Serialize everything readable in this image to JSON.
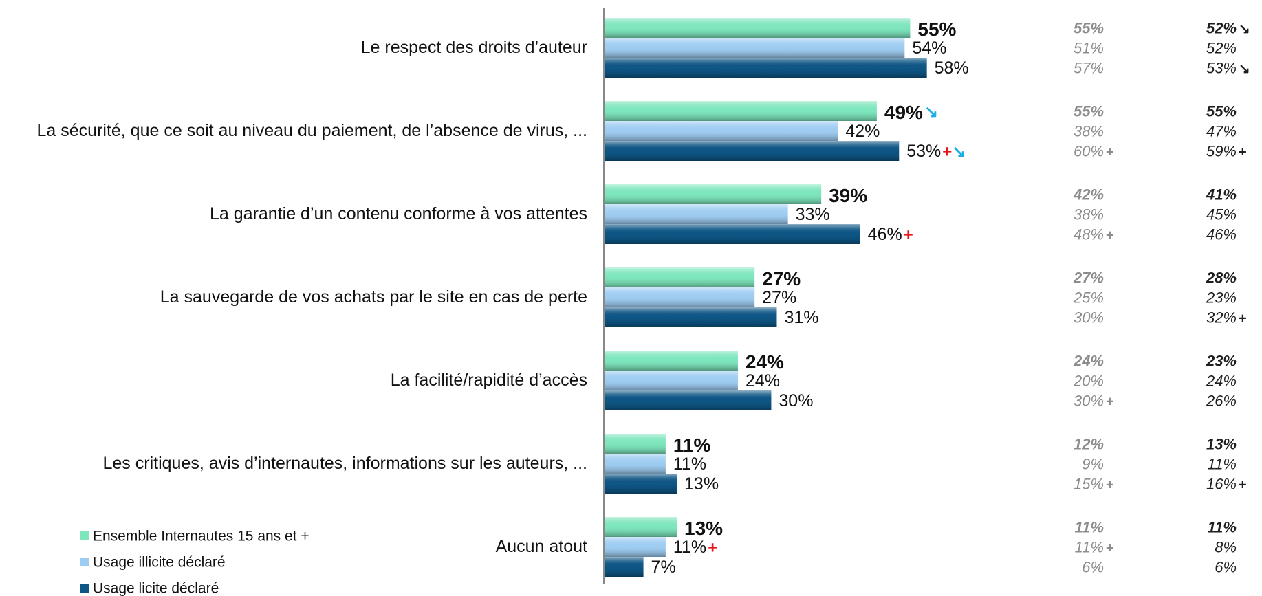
{
  "chart_data": {
    "type": "bar",
    "orientation": "horizontal",
    "categories": [
      "Le respect des droits d’auteur",
      "La sécurité, que ce soit au niveau du paiement, de l’absence de virus, ...",
      "La garantie d’un contenu conforme à vos attentes",
      "La sauvegarde de vos achats par le site en cas de perte",
      "La facilité/rapidité d’accès",
      "Les critiques, avis d’internautes, informations sur les auteurs, ...",
      "Aucun atout"
    ],
    "series": [
      {
        "name": "Ensemble Internautes 15 ans et +",
        "color": "#7ee6bd",
        "values": [
          55,
          49,
          39,
          27,
          24,
          11,
          13
        ],
        "value_labels": [
          "55%",
          "49%",
          "39%",
          "27%",
          "24%",
          "11%",
          "13%"
        ],
        "markers": [
          null,
          "↘",
          null,
          null,
          null,
          null,
          null
        ]
      },
      {
        "name": "Usage illicite déclaré",
        "color": "#9fcdf2",
        "values": [
          54,
          42,
          33,
          27,
          24,
          11,
          11
        ],
        "value_labels": [
          "54%",
          "42%",
          "33%",
          "27%",
          "24%",
          "11%",
          "11%"
        ],
        "markers": [
          null,
          null,
          null,
          null,
          null,
          null,
          "+"
        ]
      },
      {
        "name": "Usage licite déclaré",
        "color": "#0e5685",
        "values": [
          58,
          53,
          46,
          31,
          30,
          13,
          7
        ],
        "value_labels": [
          "58%",
          "53%",
          "46%",
          "31%",
          "30%",
          "13%",
          "7%"
        ],
        "markers": [
          null,
          "+↘",
          "+",
          null,
          null,
          null,
          null
        ]
      }
    ],
    "marker_colors": {
      "+": "#e8141b",
      "↘": "#1aaee6"
    },
    "extra_columns": [
      {
        "color": "#8c8c8c",
        "rows": [
          [
            {
              "value": 55,
              "label": "55%"
            },
            {
              "value": 51,
              "label": "51%"
            },
            {
              "value": 57,
              "label": "57%"
            }
          ],
          [
            {
              "value": 55,
              "label": "55%"
            },
            {
              "value": 38,
              "label": "38%"
            },
            {
              "value": 60,
              "label": "60%",
              "marker": "+"
            }
          ],
          [
            {
              "value": 42,
              "label": "42%"
            },
            {
              "value": 38,
              "label": "38%"
            },
            {
              "value": 48,
              "label": "48%",
              "marker": "+"
            }
          ],
          [
            {
              "value": 27,
              "label": "27%"
            },
            {
              "value": 25,
              "label": "25%"
            },
            {
              "value": 30,
              "label": "30%"
            }
          ],
          [
            {
              "value": 24,
              "label": "24%"
            },
            {
              "value": 20,
              "label": "20%"
            },
            {
              "value": 30,
              "label": "30%",
              "marker": "+"
            }
          ],
          [
            {
              "value": 12,
              "label": "12%"
            },
            {
              "value": 9,
              "label": "9%"
            },
            {
              "value": 15,
              "label": "15%",
              "marker": "+"
            }
          ],
          [
            {
              "value": 11,
              "label": "11%"
            },
            {
              "value": 11,
              "label": "11%",
              "marker": "+"
            },
            {
              "value": 6,
              "label": "6%"
            }
          ]
        ]
      },
      {
        "color": "#1e1e1e",
        "rows": [
          [
            {
              "value": 52,
              "label": "52%",
              "marker": "↘"
            },
            {
              "value": 52,
              "label": "52%"
            },
            {
              "value": 53,
              "label": "53%",
              "marker": "↘"
            }
          ],
          [
            {
              "value": 55,
              "label": "55%"
            },
            {
              "value": 47,
              "label": "47%"
            },
            {
              "value": 59,
              "label": "59%",
              "marker": "+"
            }
          ],
          [
            {
              "value": 41,
              "label": "41%"
            },
            {
              "value": 45,
              "label": "45%"
            },
            {
              "value": 46,
              "label": "46%"
            }
          ],
          [
            {
              "value": 28,
              "label": "28%"
            },
            {
              "value": 23,
              "label": "23%"
            },
            {
              "value": 32,
              "label": "32%",
              "marker": "+"
            }
          ],
          [
            {
              "value": 23,
              "label": "23%"
            },
            {
              "value": 24,
              "label": "24%"
            },
            {
              "value": 26,
              "label": "26%"
            }
          ],
          [
            {
              "value": 13,
              "label": "13%"
            },
            {
              "value": 11,
              "label": "11%"
            },
            {
              "value": 16,
              "label": "16%",
              "marker": "+"
            }
          ],
          [
            {
              "value": 11,
              "label": "11%"
            },
            {
              "value": 8,
              "label": "8%"
            },
            {
              "value": 6,
              "label": "6%"
            }
          ]
        ]
      }
    ]
  }
}
